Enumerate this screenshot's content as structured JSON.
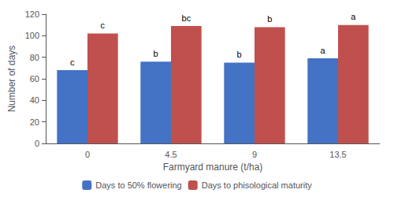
{
  "chart_data": {
    "type": "bar",
    "xlabel": "Farmyard manure (t/ha)",
    "ylabel": "Number of days",
    "categories": [
      "0",
      "4.5",
      "9",
      "13.5"
    ],
    "series": [
      {
        "name": "Days to 50% flowering",
        "color": "#4472C4",
        "values": [
          68,
          76,
          75,
          79
        ],
        "annotations": [
          "c",
          "b",
          "b",
          "a"
        ]
      },
      {
        "name": "Days to phisological maturity",
        "color": "#C0504D",
        "values": [
          102,
          109,
          108,
          110
        ],
        "annotations": [
          "c",
          "bc",
          "b",
          "a"
        ]
      }
    ],
    "ylim": [
      0,
      120
    ],
    "yticks": [
      0,
      20,
      40,
      60,
      80,
      100,
      120
    ],
    "grid": false,
    "legend": "bottom"
  }
}
